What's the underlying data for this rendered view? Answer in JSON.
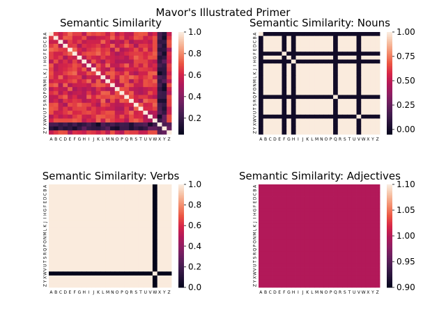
{
  "figure": {
    "title": "Mavor's Illustrated Primer"
  },
  "chart_data": [
    {
      "type": "heatmap",
      "title": "Semantic Similarity",
      "x_tick_labels": [
        "A",
        "B",
        "C",
        "D",
        "E",
        "F",
        "G",
        "H",
        "I",
        "J",
        "K",
        "L",
        "M",
        "N",
        "O",
        "P",
        "Q",
        "R",
        "S",
        "T",
        "U",
        "V",
        "W",
        "X",
        "Y",
        "Z"
      ],
      "y_tick_labels": [
        "A",
        "B",
        "C",
        "D",
        "E",
        "F",
        "G",
        "H",
        "I",
        "J",
        "K",
        "L",
        "M",
        "N",
        "O",
        "P",
        "Q",
        "R",
        "S",
        "T",
        "U",
        "V",
        "W",
        "X",
        "Y",
        "Z"
      ],
      "colorbar_range": [
        0.05,
        1.0
      ],
      "colorbar_ticks": [
        "0.2",
        "0.4",
        "0.6",
        "0.8",
        "1.0"
      ],
      "colorbar_tick_values": [
        0.2,
        0.4,
        0.6,
        0.8,
        1.0
      ],
      "colormap": "rocket",
      "diagonal_value": 1.0,
      "typical_offdiagonal_range": [
        0.5,
        0.75
      ],
      "low_rows": [
        "X",
        "Y"
      ]
    },
    {
      "type": "heatmap",
      "title": "Semantic Similarity: Nouns",
      "x_tick_labels": [
        "A",
        "B",
        "C",
        "D",
        "E",
        "F",
        "G",
        "H",
        "I",
        "J",
        "K",
        "L",
        "M",
        "N",
        "O",
        "P",
        "Q",
        "R",
        "S",
        "T",
        "U",
        "V",
        "W",
        "X",
        "Y",
        "Z"
      ],
      "y_tick_labels": [
        "A",
        "B",
        "C",
        "D",
        "E",
        "F",
        "G",
        "H",
        "I",
        "J",
        "K",
        "L",
        "M",
        "N",
        "O",
        "P",
        "Q",
        "R",
        "S",
        "T",
        "U",
        "V",
        "W",
        "X",
        "Y",
        "Z"
      ],
      "colorbar_range": [
        -0.05,
        1.0
      ],
      "colorbar_ticks": [
        "0.00",
        "0.25",
        "0.50",
        "0.75",
        "1.00"
      ],
      "colorbar_tick_values": [
        0.0,
        0.25,
        0.5,
        0.75,
        1.0
      ],
      "colormap": "rocket",
      "zero_rows_and_columns": [
        "A",
        "F",
        "H",
        "Q",
        "V"
      ],
      "value_elsewhere": 1.0
    },
    {
      "type": "heatmap",
      "title": "Semantic Similarity: Verbs",
      "x_tick_labels": [
        "A",
        "B",
        "C",
        "D",
        "E",
        "F",
        "G",
        "H",
        "I",
        "J",
        "K",
        "L",
        "M",
        "N",
        "O",
        "P",
        "Q",
        "R",
        "S",
        "T",
        "U",
        "V",
        "W",
        "X",
        "Y",
        "Z"
      ],
      "y_tick_labels": [
        "A",
        "B",
        "C",
        "D",
        "E",
        "F",
        "G",
        "H",
        "I",
        "J",
        "K",
        "L",
        "M",
        "N",
        "O",
        "P",
        "Q",
        "R",
        "S",
        "T",
        "U",
        "V",
        "W",
        "X",
        "Y",
        "Z"
      ],
      "colorbar_range": [
        0.0,
        1.0
      ],
      "colorbar_ticks": [
        "0.0",
        "0.2",
        "0.4",
        "0.6",
        "0.8",
        "1.0"
      ],
      "colorbar_tick_values": [
        0.0,
        0.2,
        0.4,
        0.6,
        0.8,
        1.0
      ],
      "colormap": "rocket",
      "zero_rows_and_columns": [
        "W"
      ],
      "value_elsewhere": 1.0
    },
    {
      "type": "heatmap",
      "title": "Semantic Similarity: Adjectives",
      "x_tick_labels": [
        "A",
        "B",
        "C",
        "D",
        "E",
        "F",
        "G",
        "H",
        "I",
        "J",
        "K",
        "L",
        "M",
        "N",
        "O",
        "P",
        "Q",
        "R",
        "S",
        "T",
        "U",
        "V",
        "W",
        "X",
        "Y",
        "Z"
      ],
      "y_tick_labels": [
        "A",
        "B",
        "C",
        "D",
        "E",
        "F",
        "G",
        "H",
        "I",
        "J",
        "K",
        "L",
        "M",
        "N",
        "O",
        "P",
        "Q",
        "R",
        "S",
        "T",
        "U",
        "V",
        "W",
        "X",
        "Y",
        "Z"
      ],
      "colorbar_range": [
        0.9,
        1.1
      ],
      "colorbar_ticks": [
        "0.90",
        "0.95",
        "1.00",
        "1.05",
        "1.10"
      ],
      "colorbar_tick_values": [
        0.9,
        0.95,
        1.0,
        1.05,
        1.1
      ],
      "colormap": "rocket",
      "value_everywhere": 1.0
    }
  ]
}
